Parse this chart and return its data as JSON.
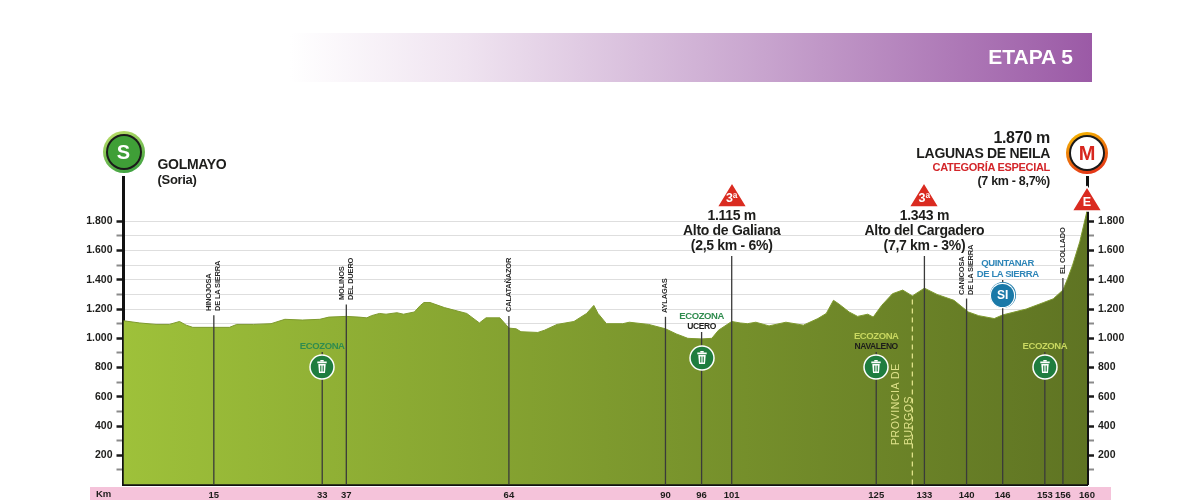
{
  "chart_data": {
    "type": "area",
    "title": "ETAPA 5",
    "xlabel": "Km",
    "x": [
      0,
      2.7,
      5.4,
      7.6,
      9.3,
      10.4,
      11.5,
      15,
      17.6,
      18.8,
      21.6,
      24.5,
      26.8,
      29.7,
      32.6,
      34.1,
      37,
      39.1,
      40.4,
      41.2,
      42.5,
      43.6,
      45.4,
      46.5,
      48.3,
      49.3,
      49.9,
      50.9,
      53.3,
      57,
      59.1,
      60.2,
      62.5,
      64,
      65.2,
      66,
      68.8,
      69.9,
      72,
      74.8,
      76.9,
      78.1,
      78.8,
      80.2,
      82.9,
      84,
      87.2,
      90,
      91.8,
      93.7,
      96,
      97.7,
      98.8,
      101,
      102.4,
      103.6,
      105,
      107.2,
      110,
      112.9,
      115.3,
      116.7,
      117.9,
      118.8,
      120.5,
      121.9,
      123.6,
      124.5,
      125.9,
      127.7,
      129.4,
      131,
      133,
      135.1,
      137.9,
      140.3,
      142,
      144.6,
      146,
      149.9,
      152.8,
      154.4,
      156,
      156.8,
      157.6,
      158.8,
      160
    ],
    "values": [
      1120,
      1105,
      1095,
      1095,
      1115,
      1090,
      1075,
      1075,
      1075,
      1095,
      1095,
      1100,
      1130,
      1125,
      1130,
      1145,
      1150,
      1145,
      1140,
      1155,
      1170,
      1165,
      1175,
      1165,
      1180,
      1225,
      1245,
      1245,
      1210,
      1170,
      1105,
      1140,
      1140,
      1070,
      1065,
      1045,
      1040,
      1055,
      1095,
      1115,
      1170,
      1225,
      1170,
      1100,
      1100,
      1110,
      1095,
      1065,
      1030,
      1000,
      995,
      1000,
      1055,
      1115,
      1105,
      1100,
      1110,
      1085,
      1110,
      1090,
      1135,
      1170,
      1260,
      1235,
      1180,
      1150,
      1165,
      1145,
      1225,
      1305,
      1330,
      1290,
      1343,
      1300,
      1260,
      1180,
      1155,
      1135,
      1160,
      1200,
      1245,
      1270,
      1330,
      1410,
      1500,
      1660,
      1870
    ],
    "color": "#7e9a2e",
    "xlim": [
      0,
      160
    ],
    "xticks": [
      15,
      33,
      37,
      64,
      90,
      96,
      101,
      125,
      133,
      140,
      146,
      153,
      156,
      160
    ],
    "ylim": [
      0,
      2100
    ],
    "yticks": [
      {
        "value": 100,
        "label": null
      },
      {
        "value": 200,
        "label": "200"
      },
      {
        "value": 300,
        "label": null
      },
      {
        "value": 400,
        "label": "400"
      },
      {
        "value": 500,
        "label": null
      },
      {
        "value": 600,
        "label": "600"
      },
      {
        "value": 700,
        "label": null
      },
      {
        "value": 800,
        "label": "800"
      },
      {
        "value": 900,
        "label": null
      },
      {
        "value": 1000,
        "label": "1.000"
      },
      {
        "value": 1100,
        "label": null
      },
      {
        "value": 1200,
        "label": "1.200"
      },
      {
        "value": 1300,
        "label": null
      },
      {
        "value": 1400,
        "label": "1.400"
      },
      {
        "value": 1500,
        "label": null
      },
      {
        "value": 1600,
        "label": "1.600"
      },
      {
        "value": 1700,
        "label": null
      },
      {
        "value": 1800,
        "label": "1.800"
      }
    ],
    "y2lim": [
      0,
      2100
    ],
    "y2ticks": [
      {
        "value": 100,
        "label": null
      },
      {
        "value": 200,
        "label": "200"
      },
      {
        "value": 300,
        "label": null
      },
      {
        "value": 400,
        "label": "400"
      },
      {
        "value": 500,
        "label": null
      },
      {
        "value": 600,
        "label": "600"
      },
      {
        "value": 700,
        "label": null
      },
      {
        "value": 800,
        "label": "800"
      },
      {
        "value": 900,
        "label": null
      },
      {
        "value": 1000,
        "label": "1.000"
      },
      {
        "value": 1100,
        "label": null
      },
      {
        "value": 1200,
        "label": "1.200"
      },
      {
        "value": 1300,
        "label": null
      },
      {
        "value": 1400,
        "label": "1.400"
      },
      {
        "value": 1500,
        "label": null
      },
      {
        "value": 1600,
        "label": "1.600"
      },
      {
        "value": 1700,
        "label": null
      },
      {
        "value": 1800,
        "label": "1.800"
      }
    ],
    "grid": "y",
    "ref_lines": [
      {
        "axis": "x",
        "value": 15,
        "label": "HINOJOSA\nDE LA SIERRA"
      },
      {
        "axis": "x",
        "value": 33,
        "label": "ECOZONA"
      },
      {
        "axis": "x",
        "value": 37,
        "label": "MOLINOS\nDEL DUERO"
      },
      {
        "axis": "x",
        "value": 64,
        "label": "CALATAÑAZOR"
      },
      {
        "axis": "x",
        "value": 90,
        "label": "AYLAGAS"
      },
      {
        "axis": "x",
        "value": 96,
        "label": "ECOZONA\nUCERO"
      },
      {
        "axis": "x",
        "value": 101
      },
      {
        "axis": "x",
        "value": 125,
        "label": "ECOZONA\nNAVALENO"
      },
      {
        "axis": "x",
        "value": 131,
        "label": "PROVINCIA DE\nBURGOS",
        "color": "#dfe28a",
        "line_style": "dashed"
      },
      {
        "axis": "x",
        "value": 133
      },
      {
        "axis": "x",
        "value": 140,
        "label": "CANICOSA\nDE LA SIERRA"
      },
      {
        "axis": "x",
        "value": 146,
        "label": "QUINTANAR\nDE LA SIERRA"
      },
      {
        "axis": "x",
        "value": 153,
        "label": "ECOZONA"
      },
      {
        "axis": "x",
        "value": 156,
        "label": "EL COLLADO"
      }
    ],
    "annotations": [
      "S",
      "GOLMAYO\n(Soria)",
      "3ª",
      "1.115 m\nAlto de Galiana\n(2,5 km - 6%)",
      "3ª",
      "1.343 m\nAlto del Cargadero\n(7,7 km - 3%)",
      "SI",
      "E",
      "M",
      "1.870 m\nLAGUNAS DE NEILA\nCATEGORÍA ESPECIAL\n(7 km - 8,7%)"
    ]
  }
}
